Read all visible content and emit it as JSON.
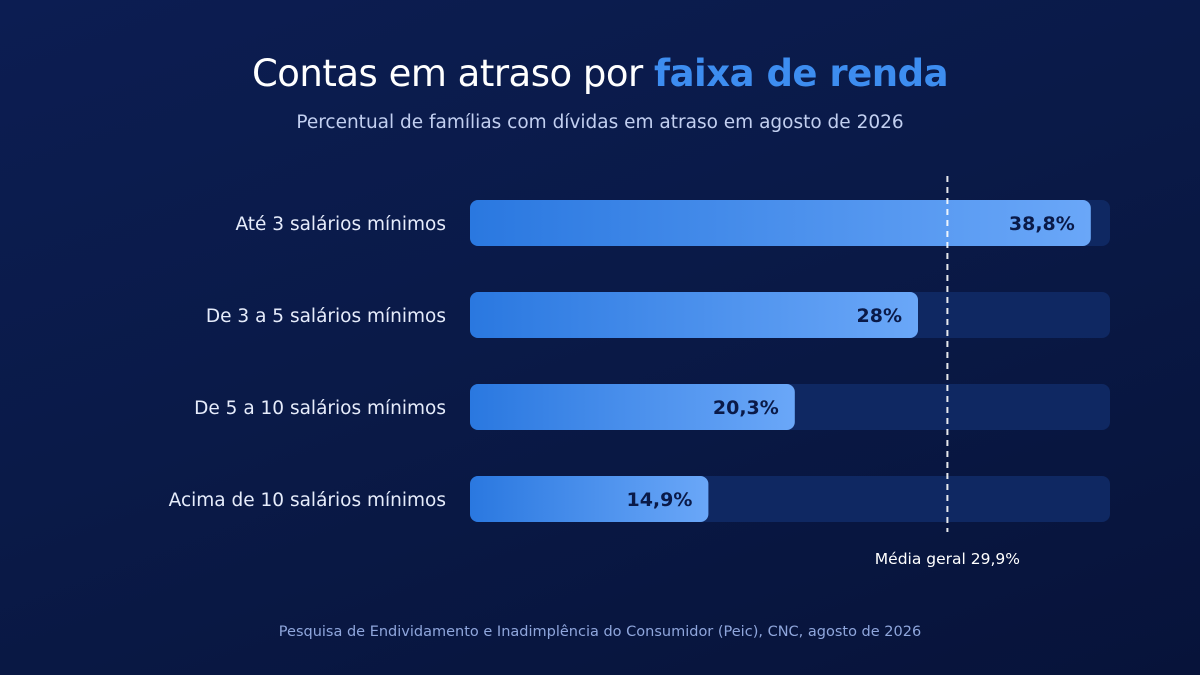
{
  "title": {
    "main": "Contas em atraso por ",
    "highlight": "faixa de renda"
  },
  "subtitle": "Percentual de famílias com dívidas em atraso em agosto de 2026",
  "chart_data": {
    "type": "bar",
    "orientation": "horizontal",
    "categories": [
      "Até 3 salários mínimos",
      "De 3 a 5 salários mínimos",
      "De 5 a 10 salários mínimos",
      "Acima de 10 salários mínimos"
    ],
    "values": [
      38.8,
      28,
      20.3,
      14.9
    ],
    "value_labels": [
      "38,8%",
      "28%",
      "20,3%",
      "14,9%"
    ],
    "xlim": [
      0,
      40
    ],
    "reference_line": {
      "value": 29.9,
      "label": "Média geral 29,9%"
    },
    "grid": false,
    "colors": {
      "bar_start": "#2a78e0",
      "bar_end": "#6aa7f8",
      "track": "#0f2862",
      "value_text": "#0a1a48"
    }
  },
  "footer": "Pesquisa de Endividamento e Inadimplência do Consumidor (Peic), CNC, agosto de 2026"
}
